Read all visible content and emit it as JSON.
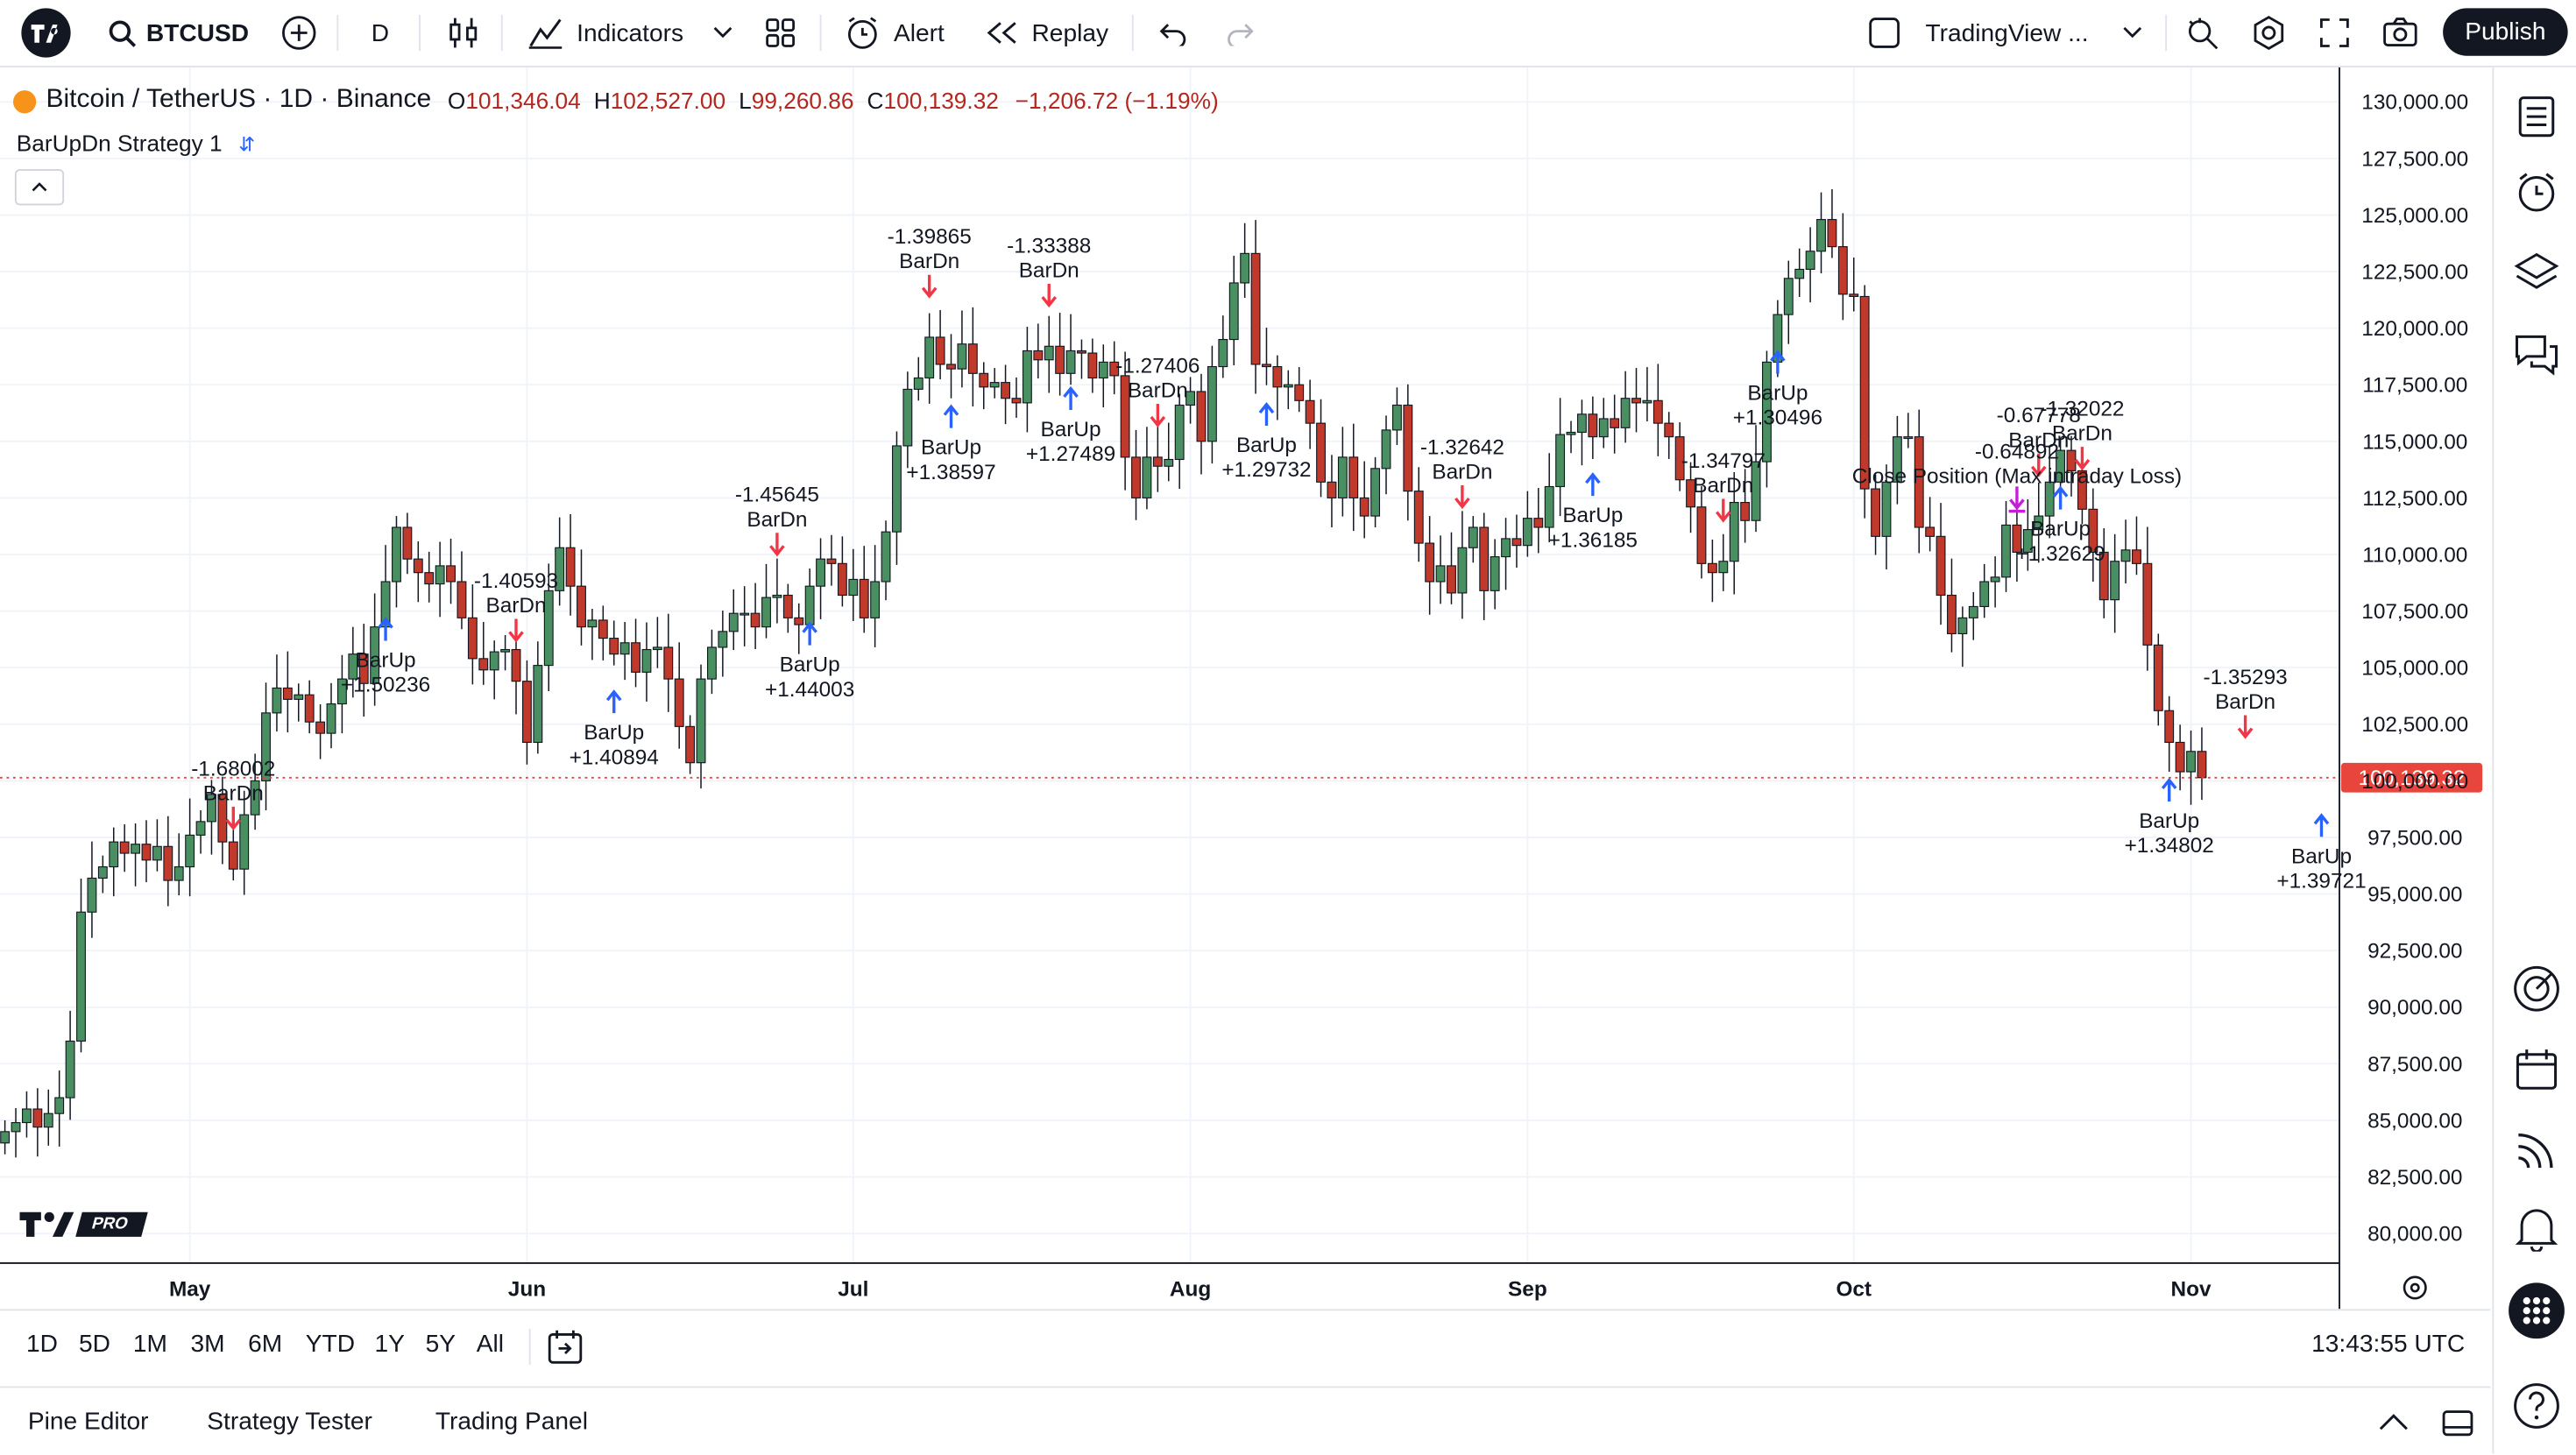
{
  "toolbar": {
    "symbol": "BTCUSD",
    "interval": "D",
    "indicators_label": "Indicators",
    "alert_label": "Alert",
    "replay_label": "Replay",
    "layout_name": "TradingView ...",
    "publish_label": "Publish"
  },
  "legend": {
    "title": "Bitcoin / TetherUS · 1D · Binance",
    "o_label": "O",
    "o_value": "101,346.04",
    "h_label": "H",
    "h_value": "102,527.00",
    "l_label": "L",
    "l_value": "99,260.86",
    "c_label": "C",
    "c_value": "100,139.32",
    "change": "−1,206.72 (−1.19%)",
    "strategy": "BarUpDn Strategy 1"
  },
  "colors": {
    "up": "#26a69a",
    "up_body": "#4a8f62",
    "down": "#c0392b",
    "signal_up": "#2962ff",
    "signal_dn": "#f23645",
    "close": "#c51ed8",
    "price_line": "#e8453c"
  },
  "chart_data": {
    "type": "candlestick",
    "price_axis": [
      "130,000.00",
      "127,500.00",
      "125,000.00",
      "122,500.00",
      "120,000.00",
      "117,500.00",
      "115,000.00",
      "112,500.00",
      "110,000.00",
      "107,500.00",
      "105,000.00",
      "102,500.00",
      "100,000.00",
      "97,500.00",
      "95,000.00",
      "92,500.00",
      "90,000.00",
      "87,500.00",
      "85,000.00",
      "82,500.00",
      "80,000.00"
    ],
    "price_ticks": [
      130000,
      127500,
      125000,
      122500,
      120000,
      117500,
      115000,
      112500,
      110000,
      107500,
      105000,
      102500,
      100000,
      97500,
      95000,
      92500,
      90000,
      87500,
      85000,
      82500,
      80000
    ],
    "ylim": [
      79000,
      131500
    ],
    "last_price": "100,139.32",
    "last_price_value": 100139.32,
    "time_axis": [
      "May",
      "Jun",
      "Jul",
      "Aug",
      "Sep",
      "Oct",
      "Nov"
    ],
    "time_axis_index": [
      17,
      48,
      78,
      109,
      140,
      170,
      201
    ],
    "close_series": [
      84500,
      84900,
      85500,
      84700,
      85300,
      86000,
      88500,
      94200,
      95700,
      96200,
      97300,
      96800,
      97200,
      96500,
      97100,
      95600,
      96200,
      97600,
      98200,
      99400,
      97300,
      96100,
      98500,
      100000,
      103000,
      104100,
      103600,
      103800,
      102600,
      102100,
      103400,
      104500,
      105600,
      104300,
      106800,
      108800,
      111200,
      109800,
      109200,
      108700,
      109500,
      108800,
      107200,
      105400,
      104900,
      105700,
      105800,
      104400,
      101700,
      105100,
      108400,
      110300,
      108600,
      106800,
      107100,
      106300,
      105600,
      106100,
      104800,
      105800,
      105900,
      104500,
      102400,
      100800,
      104500,
      105900,
      106600,
      107400,
      107400,
      106800,
      108100,
      108200,
      107200,
      106900,
      108600,
      109800,
      109600,
      108200,
      108900,
      107200,
      108800,
      111000,
      114800,
      117300,
      117800,
      119600,
      118400,
      118200,
      119300,
      118000,
      117400,
      117600,
      116900,
      116700,
      119000,
      118600,
      119200,
      118000,
      119000,
      118900,
      117800,
      118500,
      117900,
      114300,
      112500,
      114300,
      113900,
      114200,
      116600,
      117200,
      115000,
      118300,
      119500,
      122000,
      123300,
      118400,
      118300,
      117400,
      117500,
      116800,
      115800,
      113200,
      112500,
      114300,
      112500,
      111700,
      113800,
      115500,
      116600,
      112800,
      110500,
      108800,
      109500,
      108300,
      110300,
      111200,
      108400,
      109900,
      110700,
      110400,
      111600,
      111200,
      113000,
      115300,
      115400,
      116200,
      115200,
      116000,
      115600,
      116900,
      116700,
      116800,
      115800,
      115200,
      113300,
      112100,
      109600,
      109200,
      109700,
      112300,
      111500,
      114100,
      118500,
      120600,
      122200,
      122600,
      123400,
      124800,
      123600,
      121500,
      121400,
      112900,
      110800,
      113200,
      115200,
      115200,
      111200,
      110800,
      108200,
      106500,
      107200,
      107700,
      108800,
      109000,
      111300,
      110100,
      111100,
      111700,
      113200,
      114600,
      113700,
      112000,
      110100,
      108000,
      109700,
      110200,
      109600,
      106000,
      103100,
      101700,
      100400,
      101300,
      100139
    ],
    "open_start": 84000,
    "signals": [
      {
        "type": "BarDn",
        "value": "-1.68002",
        "label": "BarDn",
        "index": 21
      },
      {
        "type": "BarUp",
        "value": "+1.50236",
        "label": "BarUp",
        "index": 35
      },
      {
        "type": "BarDn",
        "value": "-1.40593",
        "label": "BarDn",
        "index": 47
      },
      {
        "type": "BarUp",
        "value": "+1.40894",
        "label": "BarUp",
        "index": 56
      },
      {
        "type": "BarDn",
        "value": "-1.45645",
        "label": "BarDn",
        "index": 71
      },
      {
        "type": "BarUp",
        "value": "+1.44003",
        "label": "BarUp",
        "index": 74
      },
      {
        "type": "BarDn",
        "value": "-1.39865",
        "label": "BarDn",
        "index": 85
      },
      {
        "type": "BarUp",
        "value": "+1.38597",
        "label": "BarUp",
        "index": 87
      },
      {
        "type": "BarDn",
        "value": "-1.33388",
        "label": "BarDn",
        "index": 96
      },
      {
        "type": "BarUp",
        "value": "+1.27489",
        "label": "BarUp",
        "index": 98
      },
      {
        "type": "BarDn",
        "value": "-1.27406",
        "label": "BarDn",
        "index": 106
      },
      {
        "type": "BarUp",
        "value": "+1.29732",
        "label": "BarUp",
        "index": 116
      },
      {
        "type": "BarDn",
        "value": "-1.32642",
        "label": "BarDn",
        "index": 134
      },
      {
        "type": "BarUp",
        "value": "+1.36185",
        "label": "BarUp",
        "index": 146
      },
      {
        "type": "BarDn",
        "value": "-1.34797",
        "label": "BarDn",
        "index": 158
      },
      {
        "type": "BarUp",
        "value": "+1.30496",
        "label": "BarUp",
        "index": 163
      },
      {
        "type": "BarDn",
        "value": "-0.67778",
        "label": "BarDn",
        "index": 187
      },
      {
        "type": "BarUp",
        "value": "+1.32629",
        "label": "BarUp",
        "index": 189
      },
      {
        "type": "BarDn",
        "value": "-1.32022",
        "label": "BarDn",
        "index": 191
      },
      {
        "type": "BarUp",
        "value": "+1.34802",
        "label": "BarUp",
        "index": 199
      },
      {
        "type": "BarDn",
        "value": "-1.35293",
        "label": "BarDn",
        "index": 206
      },
      {
        "type": "BarUp",
        "value": "+1.39721",
        "label": "BarUp",
        "index": 213
      }
    ],
    "close_position": {
      "value": "-0.64892",
      "label": "Close Position (Max intraday Loss)",
      "index": 185
    }
  },
  "watermark": "PRO",
  "range_buttons": [
    "1D",
    "5D",
    "1M",
    "3M",
    "6M",
    "YTD",
    "1Y",
    "5Y",
    "All"
  ],
  "clock": "13:43:55 UTC",
  "panels": [
    "Pine Editor",
    "Strategy Tester",
    "Trading Panel"
  ]
}
